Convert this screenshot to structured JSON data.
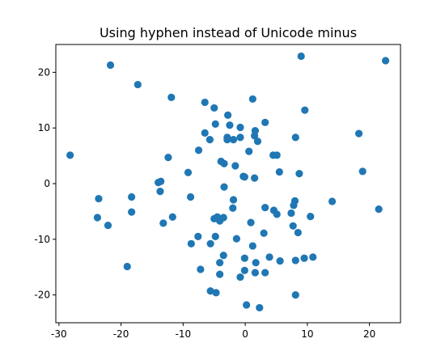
{
  "chart_data": {
    "type": "scatter",
    "title": "Using hyphen instead of Unicode minus",
    "xlabel": "",
    "ylabel": "",
    "xlim": [
      -30.5,
      25
    ],
    "ylim": [
      -25,
      25
    ],
    "xticks": [
      -30,
      -20,
      -10,
      0,
      10,
      20
    ],
    "yticks": [
      -20,
      -10,
      0,
      10,
      20
    ],
    "xtick_labels": [
      "-30",
      "-20",
      "-10",
      "0",
      "10",
      "20"
    ],
    "ytick_labels": [
      "-20",
      "-10",
      "0",
      "10",
      "20"
    ],
    "grid": false,
    "color": "#1f77b4",
    "points": [
      {
        "x": -28.2,
        "y": 5.1
      },
      {
        "x": -21.7,
        "y": 21.3
      },
      {
        "x": -17.3,
        "y": 17.8
      },
      {
        "x": -11.9,
        "y": 15.5
      },
      {
        "x": -12.4,
        "y": 4.7
      },
      {
        "x": -23.6,
        "y": -2.7
      },
      {
        "x": -23.8,
        "y": -6.1
      },
      {
        "x": -22.1,
        "y": -7.5
      },
      {
        "x": -18.3,
        "y": -2.4
      },
      {
        "x": -18.3,
        "y": -5.1
      },
      {
        "x": -19.0,
        "y": -14.9
      },
      {
        "x": -14.0,
        "y": 0.2
      },
      {
        "x": -13.6,
        "y": 0.4
      },
      {
        "x": -13.7,
        "y": -1.4
      },
      {
        "x": -13.2,
        "y": -7.1
      },
      {
        "x": -11.7,
        "y": -6.0
      },
      {
        "x": -9.2,
        "y": 2.0
      },
      {
        "x": -8.8,
        "y": -2.4
      },
      {
        "x": -8.7,
        "y": -10.8
      },
      {
        "x": -7.5,
        "y": 6.0
      },
      {
        "x": -7.6,
        "y": -9.5
      },
      {
        "x": -7.2,
        "y": -15.4
      },
      {
        "x": -6.5,
        "y": 14.6
      },
      {
        "x": -6.5,
        "y": 9.1
      },
      {
        "x": -5.7,
        "y": 7.9
      },
      {
        "x": -5.6,
        "y": -10.8
      },
      {
        "x": -5.6,
        "y": -19.3
      },
      {
        "x": -5.0,
        "y": 13.6
      },
      {
        "x": -4.8,
        "y": 10.7
      },
      {
        "x": -5.0,
        "y": -6.3
      },
      {
        "x": -4.8,
        "y": -9.5
      },
      {
        "x": -4.7,
        "y": -19.6
      },
      {
        "x": -4.5,
        "y": -6.0
      },
      {
        "x": -4.1,
        "y": -6.7
      },
      {
        "x": -4.1,
        "y": -14.2
      },
      {
        "x": -4.1,
        "y": -16.3
      },
      {
        "x": -3.9,
        "y": 4.0
      },
      {
        "x": -3.4,
        "y": 3.6
      },
      {
        "x": -3.4,
        "y": -0.6
      },
      {
        "x": -3.5,
        "y": -6.1
      },
      {
        "x": -3.5,
        "y": -12.9
      },
      {
        "x": -2.8,
        "y": 12.3
      },
      {
        "x": -2.9,
        "y": 8.3
      },
      {
        "x": -2.9,
        "y": 7.9
      },
      {
        "x": -2.5,
        "y": 10.5
      },
      {
        "x": -1.9,
        "y": 7.9
      },
      {
        "x": -1.9,
        "y": -2.9
      },
      {
        "x": -2.0,
        "y": -4.4
      },
      {
        "x": -1.6,
        "y": 3.2
      },
      {
        "x": -1.4,
        "y": -9.9
      },
      {
        "x": -0.8,
        "y": 10.1
      },
      {
        "x": -0.8,
        "y": 8.3
      },
      {
        "x": -0.8,
        "y": -16.8
      },
      {
        "x": -0.3,
        "y": 1.3
      },
      {
        "x": -0.1,
        "y": 1.2
      },
      {
        "x": -0.1,
        "y": -13.4
      },
      {
        "x": -0.1,
        "y": -15.6
      },
      {
        "x": 0.2,
        "y": -21.8
      },
      {
        "x": 0.6,
        "y": 5.8
      },
      {
        "x": 0.9,
        "y": -7.0
      },
      {
        "x": 1.2,
        "y": 15.2
      },
      {
        "x": 1.2,
        "y": -11.2
      },
      {
        "x": 1.5,
        "y": 8.6
      },
      {
        "x": 1.6,
        "y": 9.5
      },
      {
        "x": 1.5,
        "y": 1.0
      },
      {
        "x": 1.7,
        "y": -14.2
      },
      {
        "x": 1.6,
        "y": -16.0
      },
      {
        "x": 2.0,
        "y": 7.6
      },
      {
        "x": 2.3,
        "y": -22.3
      },
      {
        "x": 3.2,
        "y": 11.0
      },
      {
        "x": 3.2,
        "y": -4.3
      },
      {
        "x": 3.0,
        "y": -8.9
      },
      {
        "x": 3.2,
        "y": -16.0
      },
      {
        "x": 3.9,
        "y": -13.2
      },
      {
        "x": 4.5,
        "y": 5.1
      },
      {
        "x": 4.6,
        "y": -4.8
      },
      {
        "x": 5.1,
        "y": 5.1
      },
      {
        "x": 5.1,
        "y": -5.5
      },
      {
        "x": 5.5,
        "y": 2.1
      },
      {
        "x": 5.6,
        "y": -13.9
      },
      {
        "x": 7.4,
        "y": -5.3
      },
      {
        "x": 7.8,
        "y": -3.9
      },
      {
        "x": 7.7,
        "y": -7.6
      },
      {
        "x": 8.1,
        "y": 8.3
      },
      {
        "x": 8.0,
        "y": -3.1
      },
      {
        "x": 8.1,
        "y": -13.8
      },
      {
        "x": 8.1,
        "y": -20.0
      },
      {
        "x": 8.5,
        "y": -8.8
      },
      {
        "x": 8.7,
        "y": 1.8
      },
      {
        "x": 9.0,
        "y": 22.9
      },
      {
        "x": 9.6,
        "y": 13.2
      },
      {
        "x": 9.5,
        "y": -13.4
      },
      {
        "x": 10.5,
        "y": -5.9
      },
      {
        "x": 10.9,
        "y": -13.2
      },
      {
        "x": 14.0,
        "y": -3.2
      },
      {
        "x": 18.3,
        "y": 9.0
      },
      {
        "x": 18.9,
        "y": 2.2
      },
      {
        "x": 21.5,
        "y": -4.6
      },
      {
        "x": 22.6,
        "y": 22.1
      }
    ]
  }
}
